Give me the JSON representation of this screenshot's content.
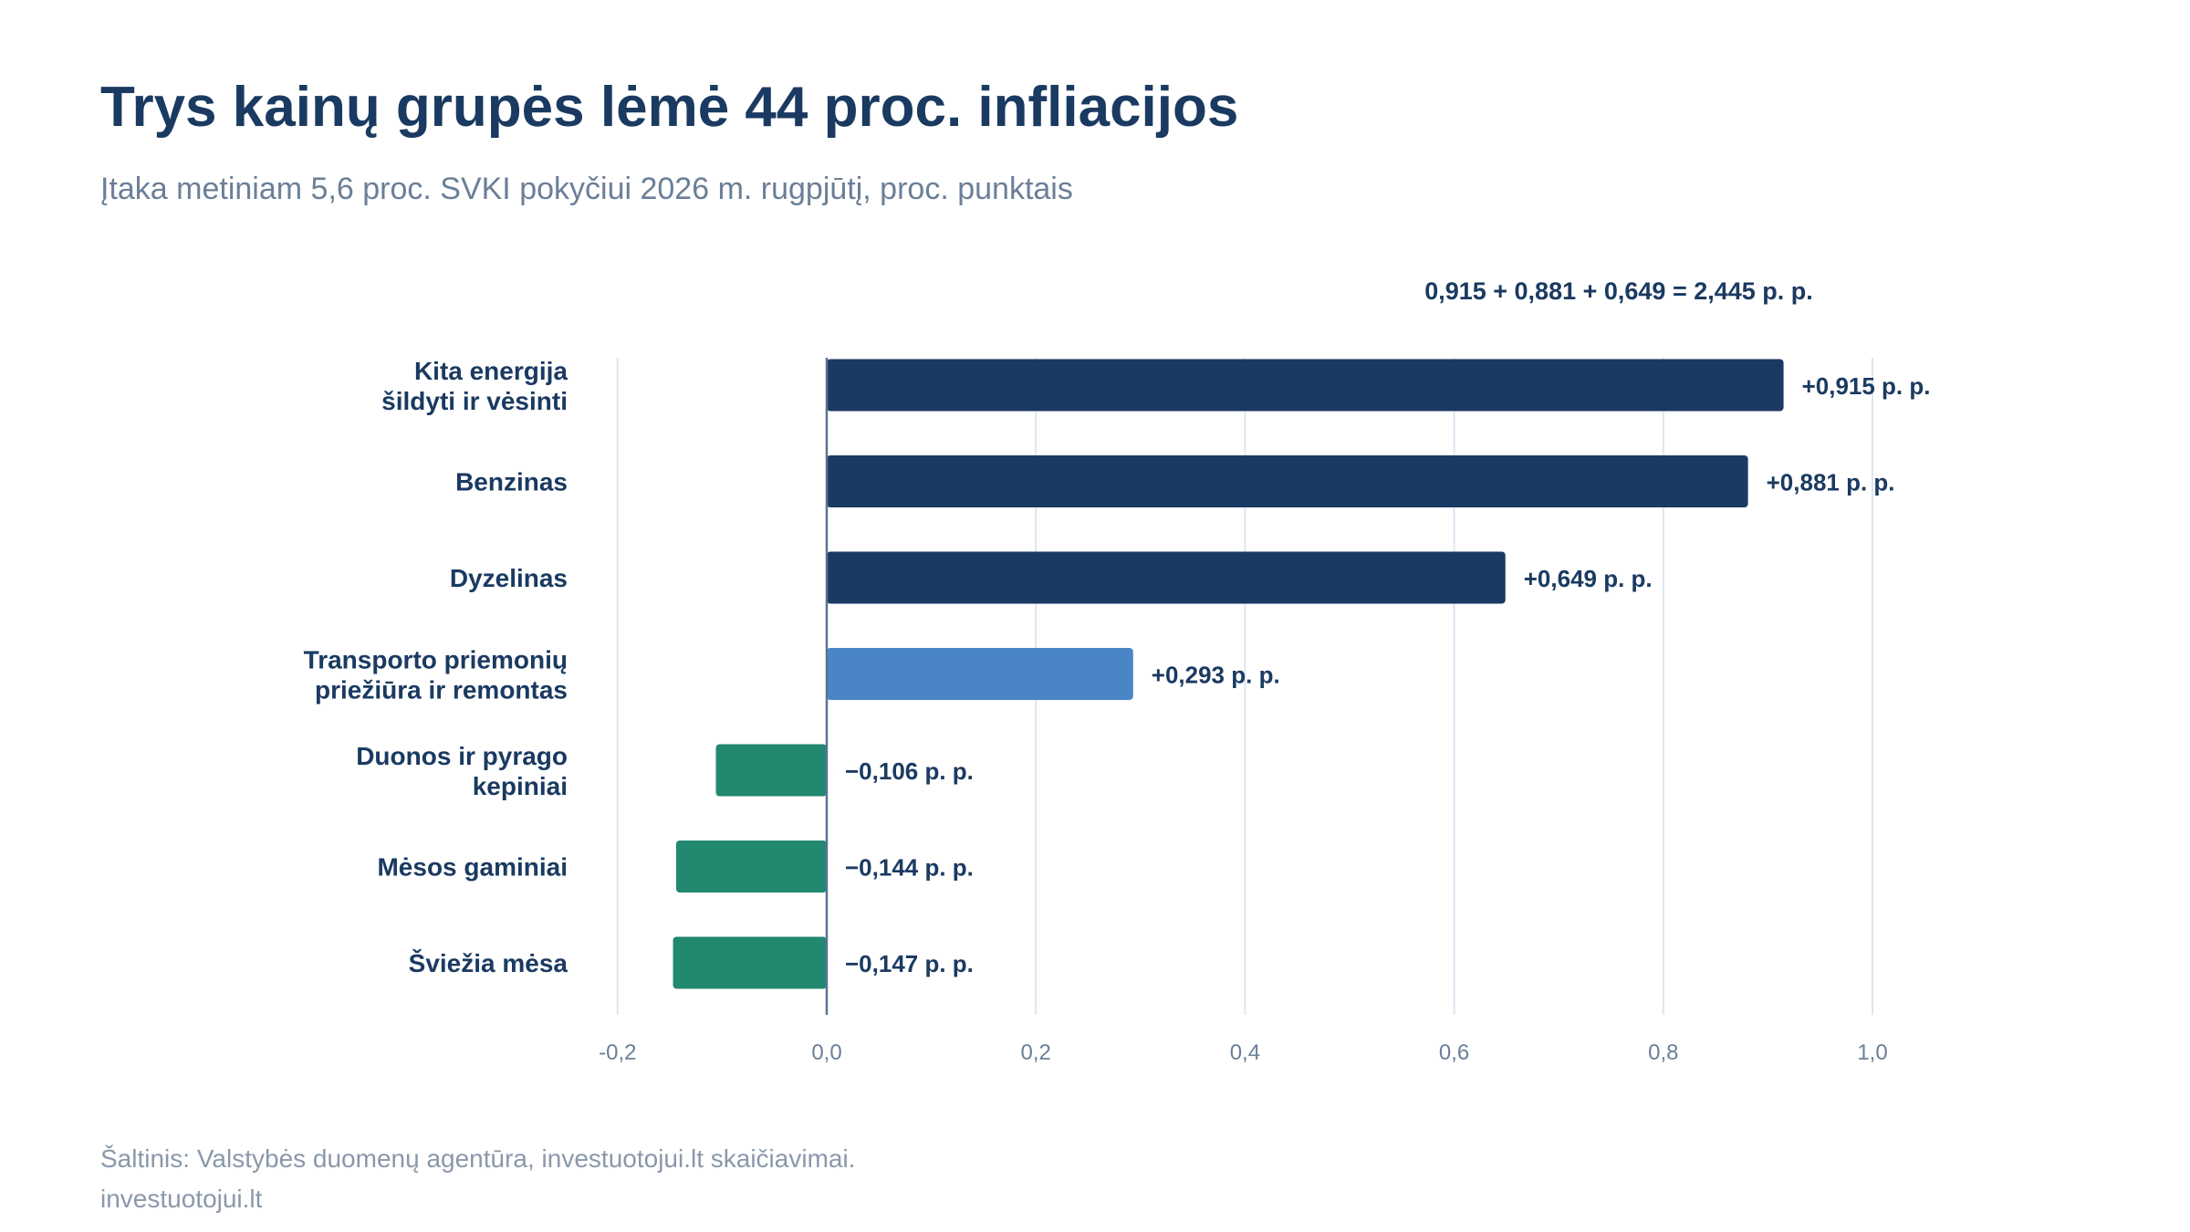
{
  "title": "Trys kainų grupės lėmė 44 proc. infliacijos",
  "subtitle": "Įtaka metiniam 5,6 proc. SVKI pokyčiui 2026 m. rugpjūtį, proc. punktais",
  "annotation": "0,915 + 0,881 + 0,649 = 2,445 p. p.",
  "footer": {
    "source": "Šaltinis: Valstybės duomenų agentūra, investuotojui.lt skaičiavimai.",
    "brand": "investuotojui.lt"
  },
  "colors": {
    "top": "#1b3a63",
    "mid": "#4a86c5",
    "negative": "#228870",
    "grid": "#dce6f0",
    "zero_line": "#5a7290",
    "label": "#1a3a61",
    "tick": "#6b7f97"
  },
  "chart_data": {
    "type": "bar",
    "orientation": "horizontal",
    "categories": [
      [
        "Kita energija",
        "šildyti ir vėsinti"
      ],
      [
        "Benzinas"
      ],
      [
        "Dyzelinas"
      ],
      [
        "Transporto priemonių",
        "priežiūra ir remontas"
      ],
      [
        "Duonos ir pyrago",
        "kepiniai"
      ],
      [
        "Mėsos gaminiai"
      ],
      [
        "Šviežia mėsa"
      ]
    ],
    "values": [
      0.915,
      0.881,
      0.649,
      0.293,
      -0.106,
      -0.144,
      -0.147
    ],
    "value_labels": [
      "+0,915 p. p.",
      "+0,881 p. p.",
      "+0,649 p. p.",
      "+0,293 p. p.",
      "−0,106 p. p.",
      "−0,144 p. p.",
      "−0,147 p. p."
    ],
    "groups": [
      "top",
      "top",
      "top",
      "mid",
      "negative",
      "negative",
      "negative"
    ],
    "xlim": [
      -0.2,
      1.0
    ],
    "xticks": [
      -0.2,
      0.0,
      0.2,
      0.4,
      0.6,
      0.8,
      1.0
    ],
    "xtick_labels": [
      "-0,2",
      "0,0",
      "0,2",
      "0,4",
      "0,6",
      "0,8",
      "1,0"
    ],
    "grid": true,
    "legend": "none"
  }
}
